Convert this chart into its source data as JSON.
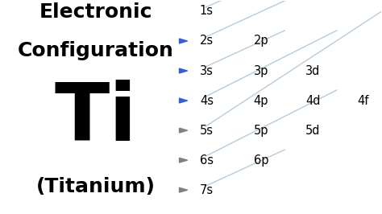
{
  "background_color": "#ffffff",
  "left_text": {
    "line1": "Electronic",
    "line2": "Configuration",
    "symbol": "Ti",
    "name": "(Titanium)"
  },
  "orbitals_s": [
    1,
    2,
    3,
    4,
    5,
    6,
    7
  ],
  "orbitals_p": [
    2,
    3,
    4,
    5,
    6
  ],
  "orbitals_d": [
    3,
    4,
    5
  ],
  "orbitals_f": [
    4
  ],
  "col_x": {
    "s": 5.1,
    "p": 6.55,
    "d": 7.95,
    "f": 9.35
  },
  "row_y": {
    "1": 9.5,
    "2": 8.1,
    "3": 6.7,
    "4": 5.3,
    "5": 3.9,
    "6": 2.5,
    "7": 1.1
  },
  "label_fontsize": 10.5,
  "title_line1_fontsize": 18,
  "title_line2_fontsize": 18,
  "symbol_fontsize": 72,
  "name_fontsize": 18,
  "line_color": "#aec6d8",
  "arrow_blue": "#3a5fcd",
  "arrow_gray": "#808080",
  "diag_lines": [
    [
      5.35,
      9.7,
      6.3,
      10.4
    ],
    [
      5.35,
      8.3,
      7.5,
      9.55
    ],
    [
      5.35,
      6.9,
      7.5,
      8.15
    ],
    [
      5.35,
      5.5,
      8.85,
      7.55
    ],
    [
      5.35,
      4.1,
      10.2,
      6.95
    ],
    [
      5.35,
      2.7,
      8.85,
      4.75
    ],
    [
      5.35,
      1.3,
      7.5,
      2.55
    ]
  ],
  "arrow_rows_blue": [
    2,
    3,
    4
  ],
  "arrow_rows_gray": [
    5,
    6,
    7
  ]
}
